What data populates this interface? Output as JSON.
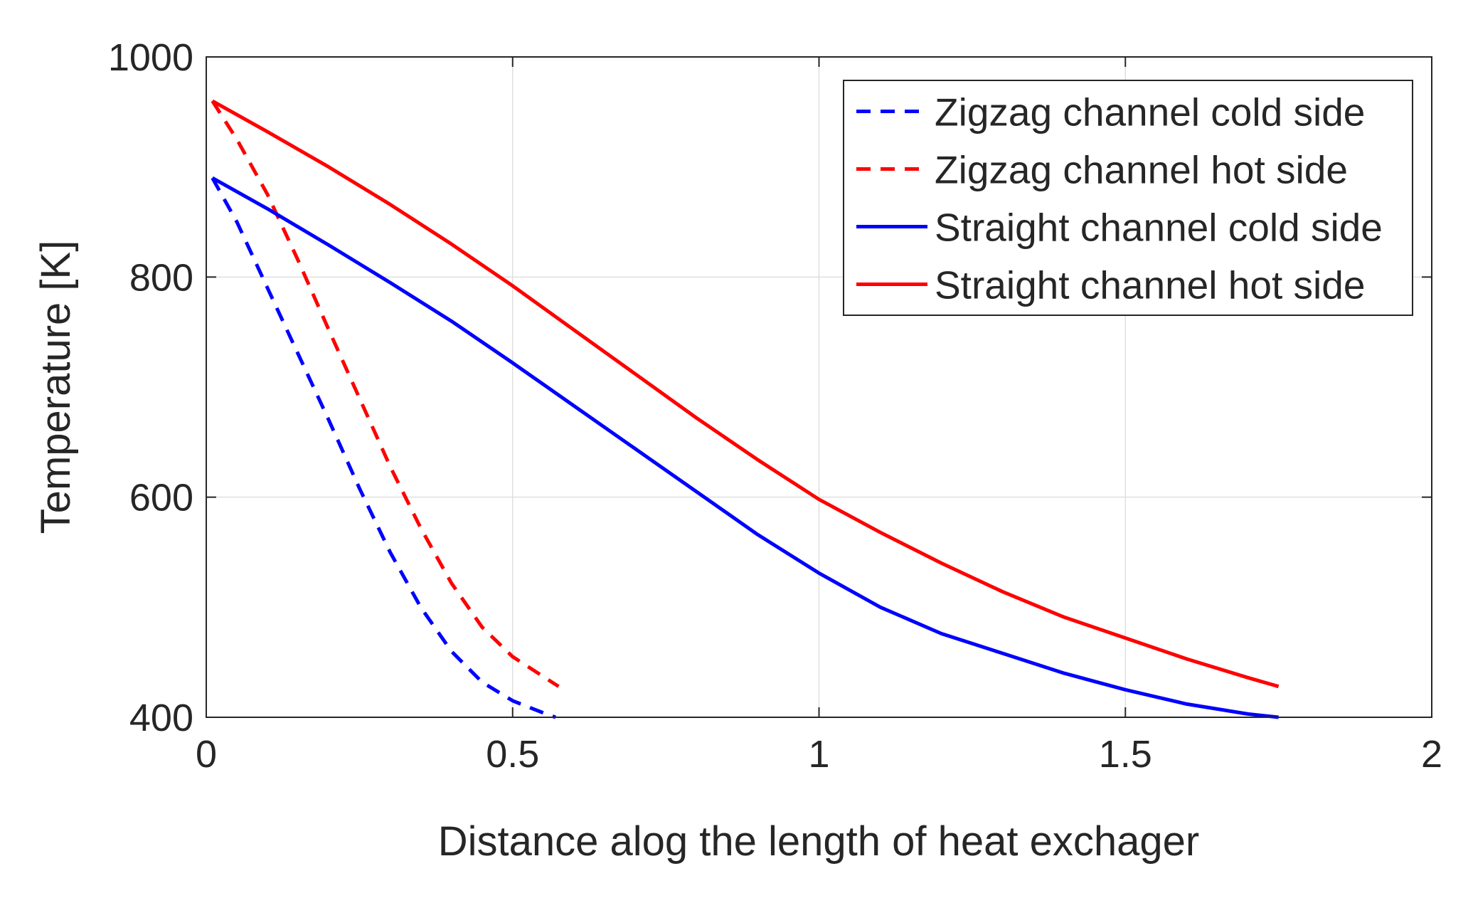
{
  "chart_data": {
    "type": "line",
    "title": "",
    "xlabel": "Distance alog the length of heat exchager",
    "ylabel": "Temperature [K]",
    "xlim": [
      0,
      2
    ],
    "ylim": [
      400,
      1000
    ],
    "xticks": [
      0,
      0.5,
      1,
      1.5,
      2
    ],
    "xtick_labels": [
      "0",
      "0.5",
      "1",
      "1.5",
      "2"
    ],
    "yticks": [
      400,
      600,
      800,
      1000
    ],
    "ytick_labels": [
      "400",
      "600",
      "800",
      "1000"
    ],
    "grid": true,
    "legend_position": "top-right",
    "series": [
      {
        "name": "Zigzag channel cold side",
        "color": "#0000ff",
        "style": "dashed",
        "x": [
          0.01,
          0.05,
          0.1,
          0.15,
          0.2,
          0.25,
          0.3,
          0.35,
          0.4,
          0.45,
          0.5,
          0.55,
          0.57
        ],
        "y": [
          890,
          850,
          790,
          730,
          670,
          608,
          550,
          500,
          460,
          432,
          415,
          404,
          400
        ]
      },
      {
        "name": "Zigzag channel hot side",
        "color": "#ff0000",
        "style": "dashed",
        "x": [
          0.01,
          0.05,
          0.1,
          0.15,
          0.2,
          0.25,
          0.3,
          0.35,
          0.4,
          0.45,
          0.5,
          0.55,
          0.575
        ],
        "y": [
          960,
          925,
          875,
          815,
          752,
          690,
          628,
          572,
          522,
          482,
          455,
          437,
          428
        ]
      },
      {
        "name": "Straight channel cold side",
        "color": "#0000ff",
        "style": "solid",
        "x": [
          0.01,
          0.1,
          0.2,
          0.3,
          0.4,
          0.5,
          0.6,
          0.7,
          0.8,
          0.9,
          1.0,
          1.1,
          1.2,
          1.3,
          1.4,
          1.5,
          1.6,
          1.7,
          1.75
        ],
        "y": [
          890,
          862,
          829,
          795,
          760,
          722,
          683,
          644,
          605,
          566,
          531,
          500,
          476,
          458,
          440,
          425,
          412,
          403,
          400
        ]
      },
      {
        "name": "Straight channel hot side",
        "color": "#ff0000",
        "style": "solid",
        "x": [
          0.01,
          0.1,
          0.2,
          0.3,
          0.4,
          0.5,
          0.6,
          0.7,
          0.8,
          0.9,
          1.0,
          1.1,
          1.2,
          1.3,
          1.4,
          1.5,
          1.6,
          1.7,
          1.75
        ],
        "y": [
          960,
          932,
          900,
          866,
          830,
          792,
          752,
          712,
          672,
          634,
          598,
          568,
          540,
          514,
          491,
          472,
          453,
          436,
          428
        ]
      }
    ]
  }
}
